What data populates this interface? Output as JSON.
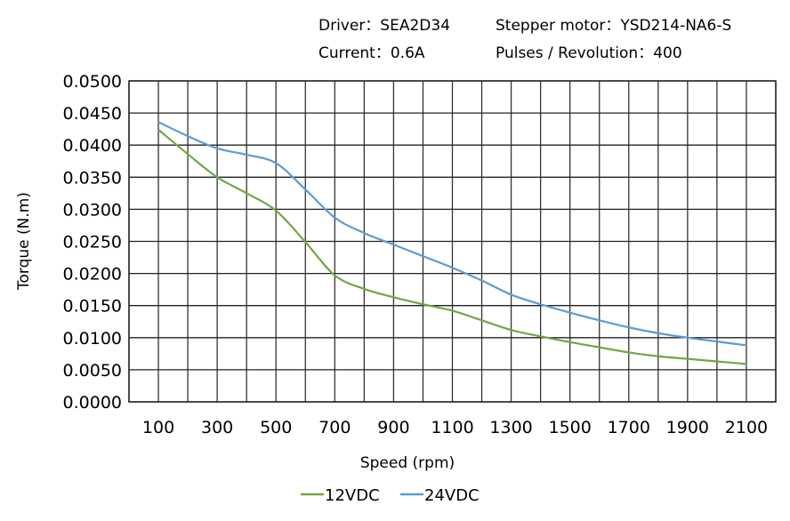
{
  "header": {
    "driver": "Driver：SEA2D34",
    "motor": "Stepper motor：YSD214-NA6-S",
    "current": "Current：0.6A",
    "pulses": "Pulses / Revolution：400"
  },
  "chart_data": {
    "type": "line",
    "xlabel": "Speed  (rpm)",
    "ylabel": "Torque (N.m)",
    "xlim": [
      0,
      2200
    ],
    "ylim": [
      0,
      0.05
    ],
    "grid": true,
    "legend_position": "bottom",
    "x_ticks": [
      100,
      300,
      500,
      700,
      900,
      1100,
      1300,
      1500,
      1700,
      1900,
      2100
    ],
    "x_tick_labels": [
      "100",
      "300",
      "500",
      "700",
      "900",
      "1100",
      "1300",
      "1500",
      "1700",
      "1900",
      "2100"
    ],
    "y_ticks": [
      0,
      0.005,
      0.01,
      0.015,
      0.02,
      0.025,
      0.03,
      0.035,
      0.04,
      0.045,
      0.05
    ],
    "y_tick_labels": [
      "0.0000",
      "0.0050",
      "0.0100",
      "0.0150",
      "0.0200",
      "0.0250",
      "0.0300",
      "0.0350",
      "0.0400",
      "0.0450",
      "0.0500"
    ],
    "x": [
      100,
      200,
      300,
      400,
      500,
      600,
      700,
      800,
      900,
      1000,
      1100,
      1200,
      1300,
      1400,
      1500,
      1600,
      1700,
      1800,
      1900,
      2000,
      2100
    ],
    "series": [
      {
        "name": "12VDC",
        "color": "#70a845",
        "values": [
          0.0424,
          0.0386,
          0.035,
          0.0325,
          0.0298,
          0.0249,
          0.0197,
          0.0176,
          0.0163,
          0.0152,
          0.0142,
          0.0127,
          0.0112,
          0.0102,
          0.0093,
          0.0085,
          0.0077,
          0.0071,
          0.0067,
          0.0063,
          0.0059
        ]
      },
      {
        "name": "24VDC",
        "color": "#5b9bd5",
        "values": [
          0.0436,
          0.0414,
          0.0395,
          0.0385,
          0.0372,
          0.0331,
          0.0287,
          0.0263,
          0.0245,
          0.0227,
          0.0209,
          0.0189,
          0.0167,
          0.0152,
          0.0139,
          0.0127,
          0.0116,
          0.0107,
          0.01,
          0.0094,
          0.0088
        ]
      }
    ]
  }
}
